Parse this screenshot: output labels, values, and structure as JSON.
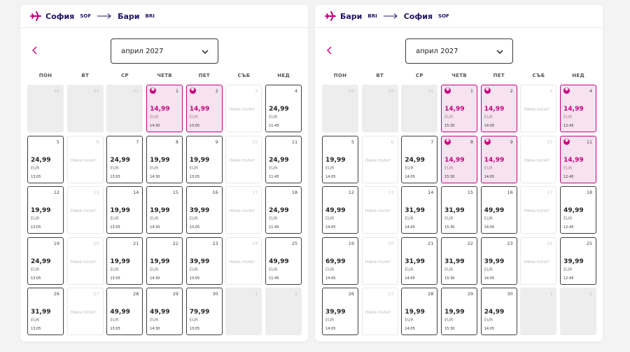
{
  "weekdays": [
    "ПОН",
    "ВТ",
    "СР",
    "ЧЕТВ",
    "ПЕТ",
    "СЪБ",
    "НЕД"
  ],
  "panels": [
    {
      "from_city": "София",
      "from_code": "SOF",
      "to_city": "Бари",
      "to_code": "BRI",
      "month": "април 2027",
      "days": [
        {
          "d": "29",
          "s": "out"
        },
        {
          "d": "30",
          "s": "out"
        },
        {
          "d": "31",
          "s": "out"
        },
        {
          "d": "1",
          "s": "promo",
          "p": "14,99",
          "c": "EUR",
          "t": "14:30"
        },
        {
          "d": "2",
          "s": "promo",
          "p": "14,99",
          "c": "EUR",
          "t": "13:05"
        },
        {
          "d": "3",
          "s": "none",
          "n": "Няма полет"
        },
        {
          "d": "4",
          "s": "avail",
          "p": "24,99",
          "c": "EUR",
          "t": "11:45"
        },
        {
          "d": "5",
          "s": "avail",
          "p": "24,99",
          "c": "EUR",
          "t": "13:05"
        },
        {
          "d": "6",
          "s": "none",
          "n": "Няма полет"
        },
        {
          "d": "7",
          "s": "avail",
          "p": "24,99",
          "c": "EUR",
          "t": "13:05"
        },
        {
          "d": "8",
          "s": "avail",
          "p": "19,99",
          "c": "EUR",
          "t": "14:30"
        },
        {
          "d": "9",
          "s": "avail",
          "p": "19,99",
          "c": "EUR",
          "t": "13:05"
        },
        {
          "d": "10",
          "s": "none",
          "n": "Няма полет"
        },
        {
          "d": "11",
          "s": "avail",
          "p": "24,99",
          "c": "EUR",
          "t": "11:45"
        },
        {
          "d": "12",
          "s": "avail",
          "p": "19,99",
          "c": "EUR",
          "t": "13:05"
        },
        {
          "d": "13",
          "s": "none",
          "n": "Няма полет"
        },
        {
          "d": "14",
          "s": "avail",
          "p": "19,99",
          "c": "EUR",
          "t": "13:05"
        },
        {
          "d": "15",
          "s": "avail",
          "p": "19,99",
          "c": "EUR",
          "t": "14:30"
        },
        {
          "d": "16",
          "s": "avail",
          "p": "39,99",
          "c": "EUR",
          "t": "13:05"
        },
        {
          "d": "17",
          "s": "none",
          "n": "Няма полет"
        },
        {
          "d": "18",
          "s": "avail",
          "p": "24,99",
          "c": "EUR",
          "t": "11:45"
        },
        {
          "d": "19",
          "s": "avail",
          "p": "24,99",
          "c": "EUR",
          "t": "13:05"
        },
        {
          "d": "20",
          "s": "none",
          "n": "Няма полет"
        },
        {
          "d": "21",
          "s": "avail",
          "p": "19,99",
          "c": "EUR",
          "t": "13:05"
        },
        {
          "d": "22",
          "s": "avail",
          "p": "19,99",
          "c": "EUR",
          "t": "14:30"
        },
        {
          "d": "23",
          "s": "avail",
          "p": "39,99",
          "c": "EUR",
          "t": "13:05"
        },
        {
          "d": "24",
          "s": "none",
          "n": "Няма полет"
        },
        {
          "d": "25",
          "s": "avail",
          "p": "49,99",
          "c": "EUR",
          "t": "11:45"
        },
        {
          "d": "26",
          "s": "avail",
          "p": "31,99",
          "c": "EUR",
          "t": "13:05"
        },
        {
          "d": "27",
          "s": "none",
          "n": "Няма полет"
        },
        {
          "d": "28",
          "s": "avail",
          "p": "49,99",
          "c": "EUR",
          "t": "13:05"
        },
        {
          "d": "29",
          "s": "avail",
          "p": "49,99",
          "c": "EUR",
          "t": "14:30"
        },
        {
          "d": "30",
          "s": "avail",
          "p": "79,99",
          "c": "EUR",
          "t": "13:05"
        },
        {
          "d": "1",
          "s": "out"
        },
        {
          "d": "2",
          "s": "out"
        }
      ]
    },
    {
      "from_city": "Бари",
      "from_code": "BRI",
      "to_city": "София",
      "to_code": "SOF",
      "month": "април 2027",
      "days": [
        {
          "d": "29",
          "s": "out"
        },
        {
          "d": "30",
          "s": "out"
        },
        {
          "d": "31",
          "s": "out"
        },
        {
          "d": "1",
          "s": "promo",
          "p": "14,99",
          "c": "EUR",
          "t": "15:30"
        },
        {
          "d": "2",
          "s": "promo",
          "p": "14,99",
          "c": "EUR",
          "t": "14:05"
        },
        {
          "d": "3",
          "s": "none",
          "n": "Няма полет"
        },
        {
          "d": "4",
          "s": "promo",
          "p": "14,99",
          "c": "EUR",
          "t": "12:45"
        },
        {
          "d": "5",
          "s": "avail",
          "p": "19,99",
          "c": "EUR",
          "t": "14:05"
        },
        {
          "d": "6",
          "s": "none",
          "n": "Няма полет"
        },
        {
          "d": "7",
          "s": "avail",
          "p": "24,99",
          "c": "EUR",
          "t": "14:05"
        },
        {
          "d": "8",
          "s": "promo",
          "p": "14,99",
          "c": "EUR",
          "t": "15:30"
        },
        {
          "d": "9",
          "s": "promo",
          "p": "14,99",
          "c": "EUR",
          "t": "14:05"
        },
        {
          "d": "10",
          "s": "none",
          "n": "Няма полет"
        },
        {
          "d": "11",
          "s": "promo",
          "p": "14,99",
          "c": "EUR",
          "t": "12:45"
        },
        {
          "d": "12",
          "s": "avail",
          "p": "49,99",
          "c": "EUR",
          "t": "14:05"
        },
        {
          "d": "13",
          "s": "none",
          "n": "Няма полет"
        },
        {
          "d": "14",
          "s": "avail",
          "p": "31,99",
          "c": "EUR",
          "t": "14:05"
        },
        {
          "d": "15",
          "s": "avail",
          "p": "31,99",
          "c": "EUR",
          "t": "15:30"
        },
        {
          "d": "16",
          "s": "avail",
          "p": "49,99",
          "c": "EUR",
          "t": "14:05"
        },
        {
          "d": "17",
          "s": "none",
          "n": "Няма полет"
        },
        {
          "d": "18",
          "s": "avail",
          "p": "49,99",
          "c": "EUR",
          "t": "12:45"
        },
        {
          "d": "19",
          "s": "avail",
          "p": "69,99",
          "c": "EUR",
          "t": "14:05"
        },
        {
          "d": "20",
          "s": "none",
          "n": "Няма полет"
        },
        {
          "d": "21",
          "s": "avail",
          "p": "31,99",
          "c": "EUR",
          "t": "14:05"
        },
        {
          "d": "22",
          "s": "avail",
          "p": "31,99",
          "c": "EUR",
          "t": "15:30"
        },
        {
          "d": "23",
          "s": "avail",
          "p": "39,99",
          "c": "EUR",
          "t": "14:05"
        },
        {
          "d": "24",
          "s": "none",
          "n": "Няма полет"
        },
        {
          "d": "25",
          "s": "avail",
          "p": "39,99",
          "c": "EUR",
          "t": "12:45"
        },
        {
          "d": "26",
          "s": "avail",
          "p": "39,99",
          "c": "EUR",
          "t": "14:05"
        },
        {
          "d": "27",
          "s": "none",
          "n": "Няма полет"
        },
        {
          "d": "28",
          "s": "avail",
          "p": "19,99",
          "c": "EUR",
          "t": "14:05"
        },
        {
          "d": "29",
          "s": "avail",
          "p": "19,99",
          "c": "EUR",
          "t": "15:30"
        },
        {
          "d": "30",
          "s": "avail",
          "p": "24,99",
          "c": "EUR",
          "t": "14:05"
        },
        {
          "d": "1",
          "s": "out"
        },
        {
          "d": "2",
          "s": "out"
        }
      ]
    }
  ],
  "colors": {
    "accent": "#c6007e",
    "promo_bg": "#f7e2ef",
    "navy": "#1b1464"
  },
  "icons": {
    "plane": "plane-icon",
    "arrow": "arrow-right-icon",
    "prev": "chevron-left-icon",
    "dropdown": "chevron-down-icon",
    "promo": "discount-star-icon"
  }
}
